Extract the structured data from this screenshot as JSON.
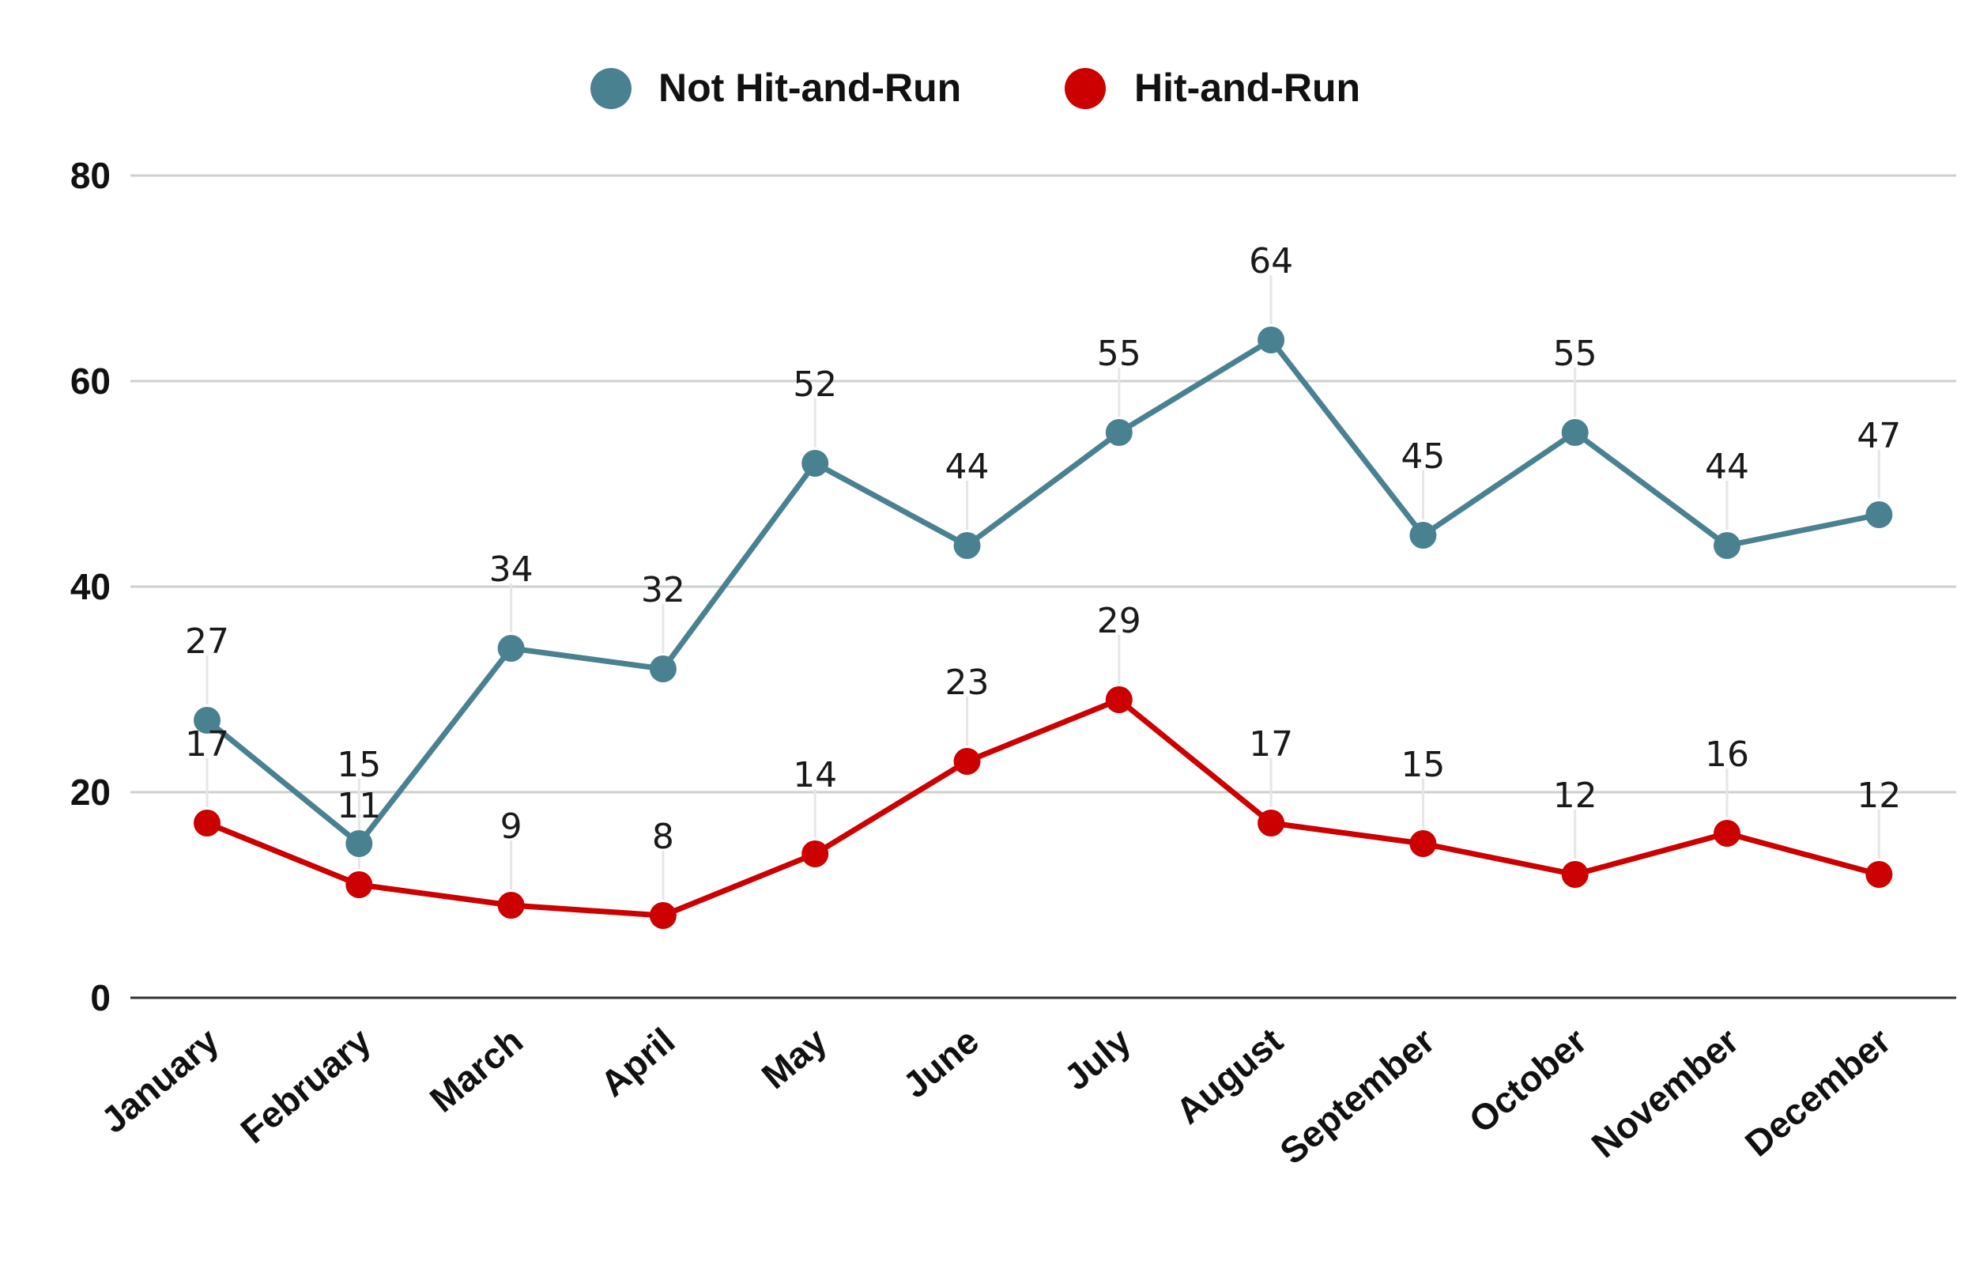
{
  "chart_data": {
    "type": "line",
    "title": "",
    "xlabel": "",
    "ylabel": "",
    "categories": [
      "January",
      "February",
      "March",
      "April",
      "May",
      "June",
      "July",
      "August",
      "September",
      "October",
      "November",
      "December"
    ],
    "ylim": [
      0,
      80
    ],
    "yticks": [
      0,
      20,
      40,
      60,
      80
    ],
    "grid": true,
    "legend_position": "top-center",
    "series": [
      {
        "name": "Not Hit-and-Run",
        "color": "#4a8191",
        "values": [
          27,
          15,
          34,
          32,
          52,
          44,
          55,
          64,
          45,
          55,
          44,
          47
        ]
      },
      {
        "name": "Hit-and-Run",
        "color": "#cc0000",
        "values": [
          17,
          11,
          9,
          8,
          14,
          23,
          29,
          17,
          15,
          12,
          16,
          12
        ]
      }
    ]
  }
}
